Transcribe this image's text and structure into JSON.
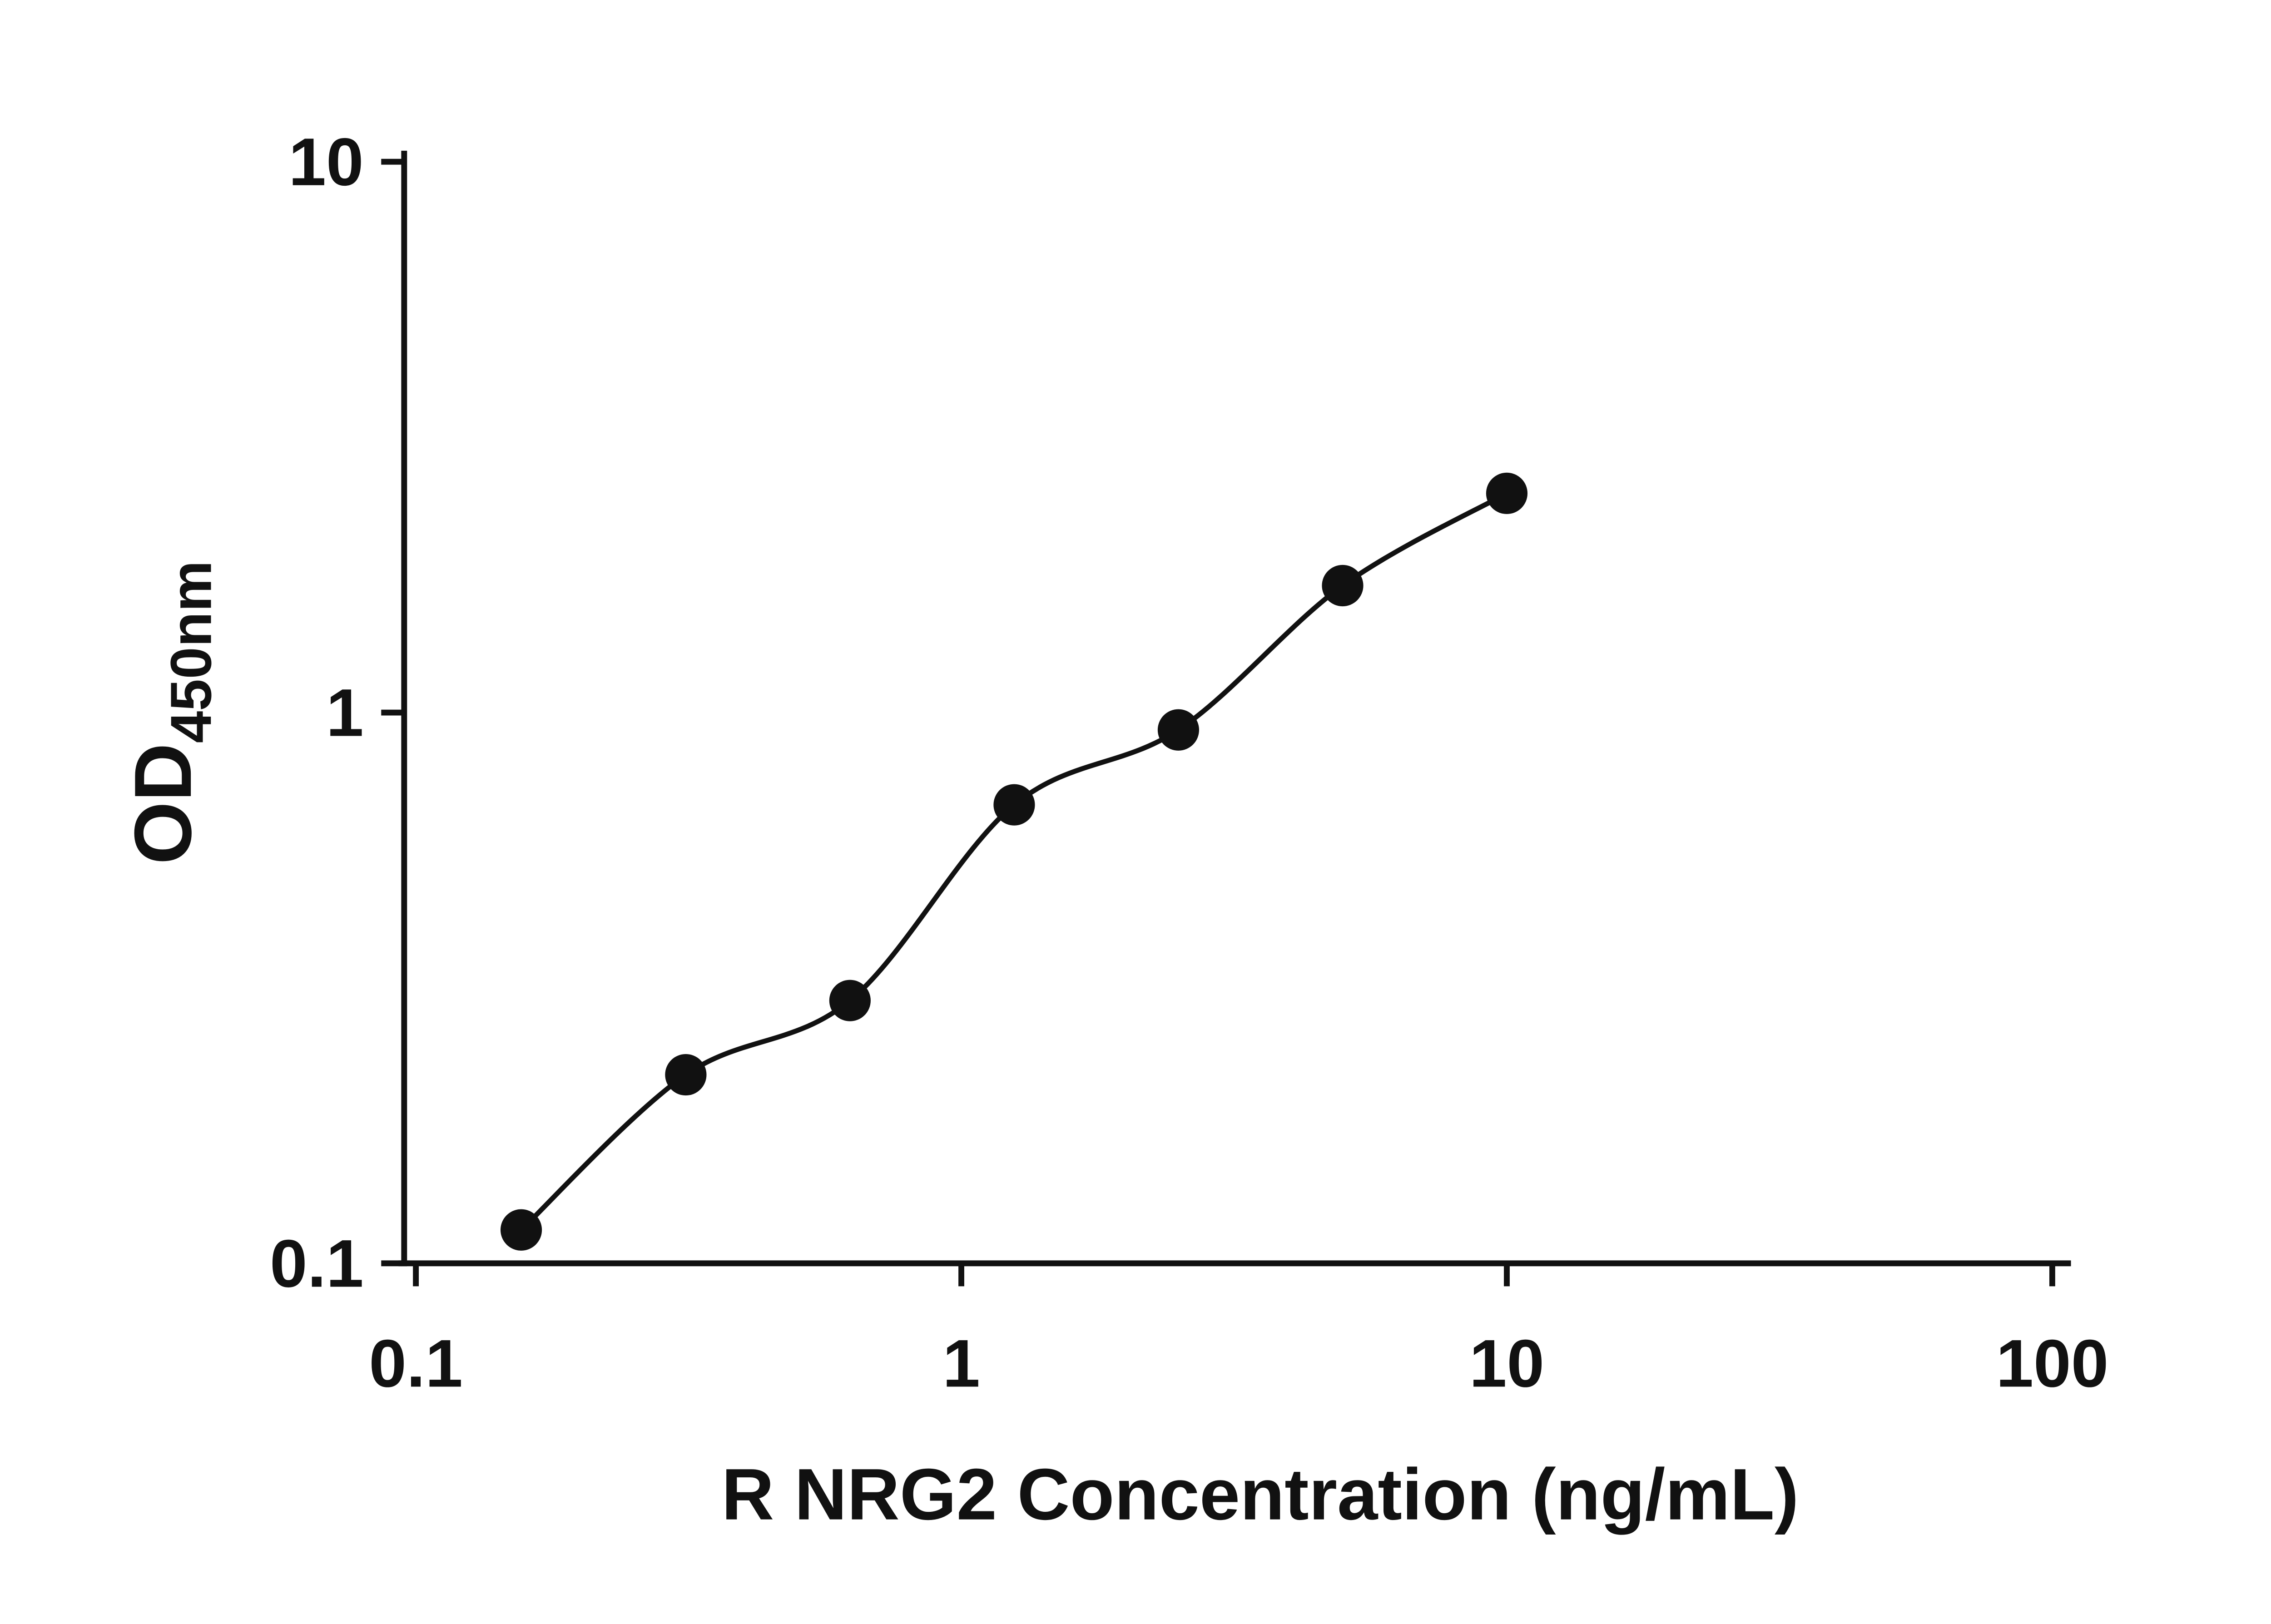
{
  "chart_data": {
    "type": "scatter",
    "title": "",
    "xlabel": "R NRG2 Concentration (ng/mL)",
    "ylabel_main": "OD",
    "ylabel_sub": "450nm",
    "x_scale": "log",
    "y_scale": "log",
    "xlim": [
      0.1,
      100
    ],
    "ylim": [
      0.1,
      10
    ],
    "grid": false,
    "legend": "none",
    "curve_style": "smooth fit line through points",
    "x_ticks": [
      {
        "value": 0.1,
        "label": "0.1"
      },
      {
        "value": 1,
        "label": "1"
      },
      {
        "value": 10,
        "label": "10"
      },
      {
        "value": 100,
        "label": "100"
      }
    ],
    "y_ticks": [
      {
        "value": 0.1,
        "label": "0.1"
      },
      {
        "value": 1,
        "label": "1"
      },
      {
        "value": 10,
        "label": "10"
      }
    ],
    "series": [
      {
        "marker": "filled-circle",
        "color": "#111111",
        "points": [
          {
            "x": 0.156,
            "y": 0.115
          },
          {
            "x": 0.3125,
            "y": 0.22
          },
          {
            "x": 0.625,
            "y": 0.3
          },
          {
            "x": 1.25,
            "y": 0.68
          },
          {
            "x": 2.5,
            "y": 0.93
          },
          {
            "x": 5,
            "y": 1.7
          },
          {
            "x": 10,
            "y": 2.5
          }
        ]
      }
    ]
  },
  "colors": {
    "background": "#ffffff",
    "axis": "#111111",
    "point": "#111111",
    "curve": "#111111"
  }
}
